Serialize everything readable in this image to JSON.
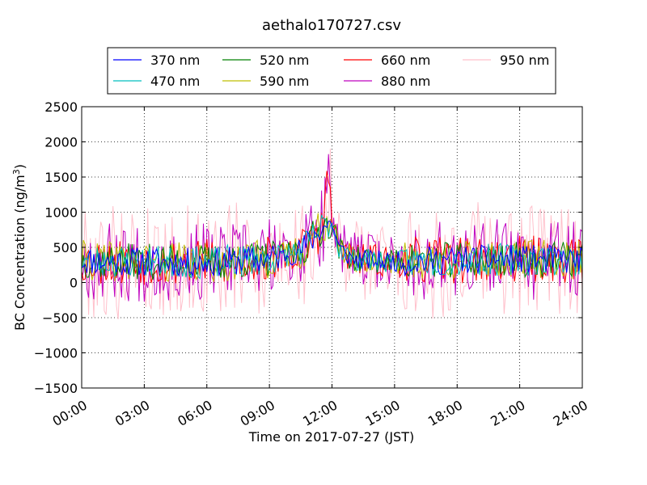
{
  "chart_data": {
    "type": "line",
    "title": "aethalo170727.csv",
    "xlabel": "Time on 2017-07-27 (JST)",
    "ylabel_main": "BC Concentration (ng/m",
    "ylabel_sup": "3",
    "ylabel_end": ")",
    "xlim_hours": [
      0,
      24
    ],
    "ylim": [
      -1500,
      2500
    ],
    "x_ticks": [
      {
        "value": 0,
        "label": "00:00"
      },
      {
        "value": 3,
        "label": "03:00"
      },
      {
        "value": 6,
        "label": "06:00"
      },
      {
        "value": 9,
        "label": "09:00"
      },
      {
        "value": 12,
        "label": "12:00"
      },
      {
        "value": 15,
        "label": "15:00"
      },
      {
        "value": 18,
        "label": "18:00"
      },
      {
        "value": 21,
        "label": "21:00"
      },
      {
        "value": 24,
        "label": "24:00"
      }
    ],
    "y_ticks": [
      {
        "value": -1500,
        "label": "−1500"
      },
      {
        "value": -1000,
        "label": "−1000"
      },
      {
        "value": -500,
        "label": "−500"
      },
      {
        "value": 0,
        "label": "0"
      },
      {
        "value": 500,
        "label": "500"
      },
      {
        "value": 1000,
        "label": "1000"
      },
      {
        "value": 1500,
        "label": "1500"
      },
      {
        "value": 2000,
        "label": "2000"
      },
      {
        "value": 2500,
        "label": "2500"
      }
    ],
    "grid": true,
    "legend_position": "top, above plot, 4 columns",
    "series": [
      {
        "name": "370 nm",
        "color": "#0000ff",
        "amp": 0.4,
        "seed": 11
      },
      {
        "name": "470 nm",
        "color": "#00bfbf",
        "amp": 0.45,
        "seed": 23
      },
      {
        "name": "520 nm",
        "color": "#008000",
        "amp": 0.5,
        "seed": 37
      },
      {
        "name": "590 nm",
        "color": "#bfbf00",
        "amp": 0.55,
        "seed": 41
      },
      {
        "name": "660 nm",
        "color": "#ff0000",
        "amp": 0.65,
        "seed": 53
      },
      {
        "name": "880 nm",
        "color": "#bf00bf",
        "amp": 1.1,
        "seed": 67
      },
      {
        "name": "950 nm",
        "color": "#ffc0cb",
        "amp": 1.6,
        "seed": 79
      }
    ],
    "profile": [
      [
        0.0,
        320
      ],
      [
        1.0,
        300
      ],
      [
        3.0,
        300
      ],
      [
        6.0,
        280
      ],
      [
        9.0,
        340
      ],
      [
        10.5,
        450
      ],
      [
        11.0,
        600
      ],
      [
        11.5,
        780
      ],
      [
        12.0,
        850
      ],
      [
        12.3,
        500
      ],
      [
        13.0,
        330
      ],
      [
        15.0,
        300
      ],
      [
        18.0,
        320
      ],
      [
        21.0,
        330
      ],
      [
        24.0,
        320
      ]
    ]
  }
}
